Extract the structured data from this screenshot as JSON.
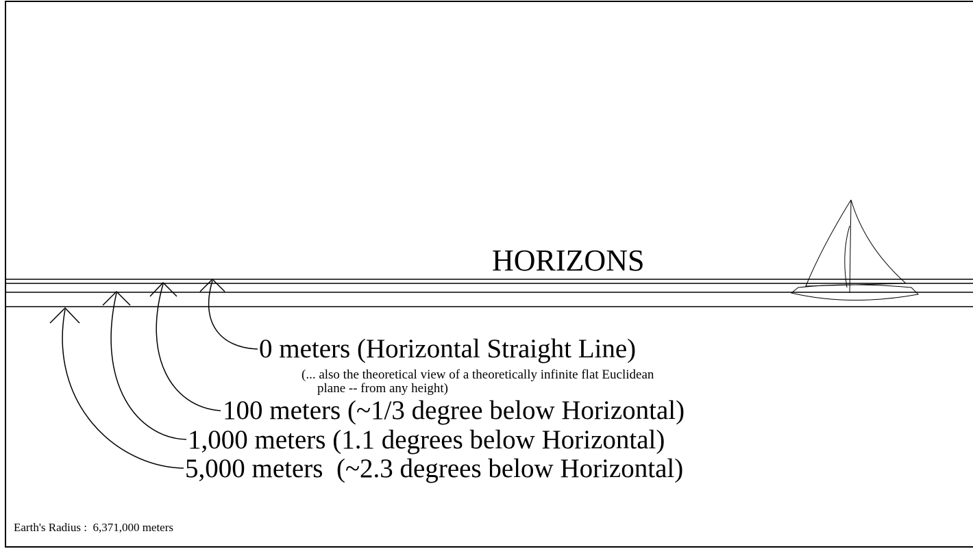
{
  "title": "HORIZONS",
  "labels": [
    "0 meters (Horizontal Straight Line)",
    "100 meters (~1/3 degree below Horizontal)",
    "1,000 meters (1.1 degrees below Horizontal)",
    "5,000 meters  (~2.3 degrees below Horizontal)"
  ],
  "note": [
    "(... also the theoretical view of a theoretically infinite flat Euclidean",
    "plane -- from any height)"
  ],
  "footer": "Earth's Radius :  6,371,000 meters"
}
